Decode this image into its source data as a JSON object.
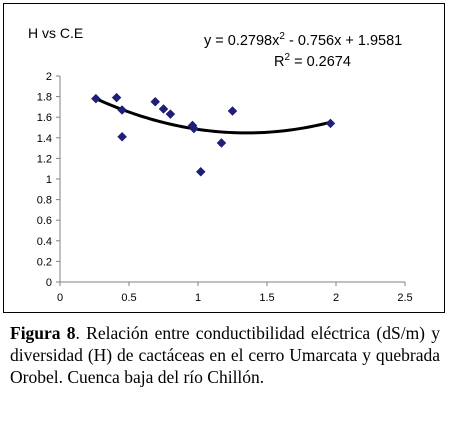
{
  "chart_data": {
    "type": "scatter",
    "title": "H vs C.E",
    "equation": "y = 0.2798x",
    "equation_exp": "2",
    "equation_rest": " - 0.756x + 1.9581",
    "r2_label": "R",
    "r2_exp": "2",
    "r2_rest": " = 0.2674",
    "xlim": [
      0,
      2.5
    ],
    "ylim": [
      0,
      2
    ],
    "x_ticks": [
      "0",
      "0.5",
      "1",
      "1.5",
      "2",
      "2.5"
    ],
    "y_ticks": [
      "0",
      "0.2",
      "0.4",
      "0.6",
      "0.8",
      "1",
      "1.2",
      "1.4",
      "1.6",
      "1.8",
      "2"
    ],
    "points": [
      {
        "x": 0.26,
        "y": 1.78
      },
      {
        "x": 0.41,
        "y": 1.79
      },
      {
        "x": 0.45,
        "y": 1.67
      },
      {
        "x": 0.45,
        "y": 1.41
      },
      {
        "x": 0.69,
        "y": 1.75
      },
      {
        "x": 0.75,
        "y": 1.68
      },
      {
        "x": 0.8,
        "y": 1.63
      },
      {
        "x": 0.96,
        "y": 1.52
      },
      {
        "x": 0.97,
        "y": 1.49
      },
      {
        "x": 1.02,
        "y": 1.07
      },
      {
        "x": 1.17,
        "y": 1.35
      },
      {
        "x": 1.25,
        "y": 1.66
      },
      {
        "x": 1.96,
        "y": 1.54
      }
    ],
    "trendline": {
      "a": 0.2798,
      "b": -0.756,
      "c": 1.9581,
      "x_range": [
        0.26,
        1.96
      ]
    },
    "marker_color": "#1f1f7a",
    "trend_color": "#000000",
    "grid": false,
    "legend": "none"
  },
  "caption": {
    "label": "Figura 8",
    "text": ". Relación entre conductibilidad eléctrica (dS/m) y diversidad (H) de cactáceas en el cerro Umarcata y quebrada Orobel. Cuenca baja del río Chillón."
  }
}
